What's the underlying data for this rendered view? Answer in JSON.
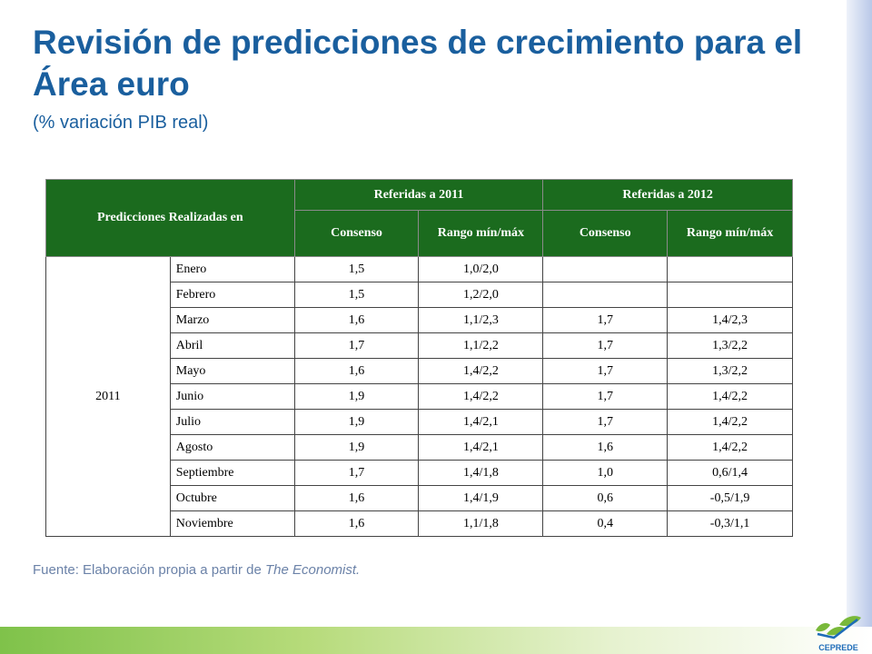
{
  "title": "Revisión de predicciones de crecimiento para el Área euro",
  "subtitle": "(% variación PIB real)",
  "table": {
    "header": {
      "predicciones": "Predicciones Realizadas en",
      "ref2011": "Referidas a 2011",
      "ref2012": "Referidas a 2012",
      "consenso": "Consenso",
      "rango": "Rango mín/máx"
    },
    "year": "2011",
    "rows": [
      {
        "month": "Enero",
        "c2011": "1,5",
        "r2011": "1,0/2,0",
        "c2012": "",
        "r2012": ""
      },
      {
        "month": "Febrero",
        "c2011": "1,5",
        "r2011": "1,2/2,0",
        "c2012": "",
        "r2012": ""
      },
      {
        "month": "Marzo",
        "c2011": "1,6",
        "r2011": "1,1/2,3",
        "c2012": "1,7",
        "r2012": "1,4/2,3"
      },
      {
        "month": "Abril",
        "c2011": "1,7",
        "r2011": "1,1/2,2",
        "c2012": "1,7",
        "r2012": "1,3/2,2"
      },
      {
        "month": "Mayo",
        "c2011": "1,6",
        "r2011": "1,4/2,2",
        "c2012": "1,7",
        "r2012": "1,3/2,2"
      },
      {
        "month": "Junio",
        "c2011": "1,9",
        "r2011": "1,4/2,2",
        "c2012": "1,7",
        "r2012": "1,4/2,2"
      },
      {
        "month": "Julio",
        "c2011": "1,9",
        "r2011": "1,4/2,1",
        "c2012": "1,7",
        "r2012": "1,4/2,2"
      },
      {
        "month": "Agosto",
        "c2011": "1,9",
        "r2011": "1,4/2,1",
        "c2012": "1,6",
        "r2012": "1,4/2,2"
      },
      {
        "month": "Septiembre",
        "c2011": "1,7",
        "r2011": "1,4/1,8",
        "c2012": "1,0",
        "r2012": "0,6/1,4"
      },
      {
        "month": "Octubre",
        "c2011": "1,6",
        "r2011": "1,4/1,9",
        "c2012": "0,6",
        "r2012": "-0,5/1,9"
      },
      {
        "month": "Noviembre",
        "c2011": "1,6",
        "r2011": "1,1/1,8",
        "c2012": "0,4",
        "r2012": "-0,3/1,1"
      }
    ]
  },
  "source": {
    "prefix": "Fuente: Elaboración propia a partir de ",
    "italic": "The Economist."
  },
  "logo": {
    "text": "CEPREDE",
    "colors": {
      "green": "#79b93a",
      "blue": "#1d6cb8"
    }
  },
  "colors": {
    "title": "#1a5f9e",
    "header_bg": "#1b6b1e",
    "bottom_bar": "#7fc24a"
  }
}
